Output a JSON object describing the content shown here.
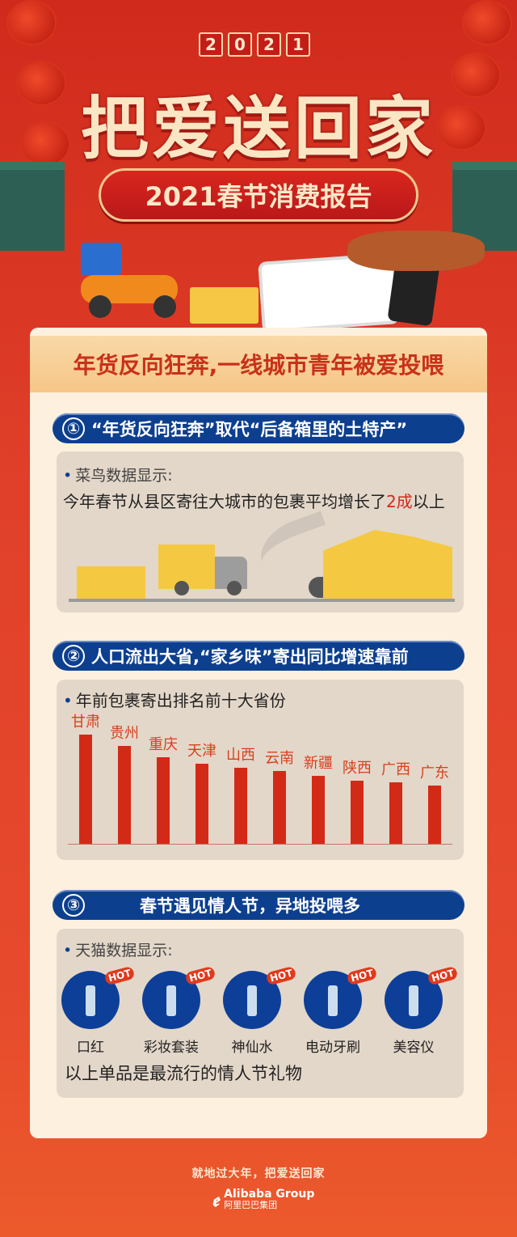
{
  "header": {
    "year_digits": [
      "2",
      "0",
      "2",
      "1"
    ],
    "title": "把爱送回家",
    "subtitle": "2021春节消费报告"
  },
  "card": {
    "title": "年货反向狂奔,一线城市青年被爱投喂"
  },
  "section1": {
    "num": "①",
    "title": "“年货反向狂奔”取代“后备箱里的土特产”",
    "source": "菜鸟数据显示:",
    "text_a": "今年春节从县区寄往大城市的包裹平均增长了",
    "text_highlight": "2成",
    "text_b": "以上"
  },
  "section2": {
    "num": "②",
    "title": "人口流出大省,“家乡味”寄出同比增速靠前",
    "subtitle": "年前包裹寄出排名前十大省份"
  },
  "chart_data": {
    "type": "bar",
    "title": "年前包裹寄出排名前十大省份",
    "categories": [
      "甘肃",
      "贵州",
      "重庆",
      "天津",
      "山西",
      "云南",
      "新疆",
      "陕西",
      "广西",
      "广东"
    ],
    "values": [
      100,
      90,
      79,
      73,
      70,
      67,
      62,
      58,
      56,
      53
    ],
    "grid": false,
    "axis_labels": false,
    "bar_color": "#d32a17"
  },
  "section3": {
    "num": "③",
    "title": "春节遇见情人节，异地投喂多",
    "source": "天猫数据显示:",
    "badge": "HOT",
    "items": [
      {
        "label": "口红",
        "icon": "lipstick-icon"
      },
      {
        "label": "彩妆套装",
        "icon": "makeup-kit-icon"
      },
      {
        "label": "神仙水",
        "icon": "essence-bottle-icon"
      },
      {
        "label": "电动牙刷",
        "icon": "electric-toothbrush-icon"
      },
      {
        "label": "美容仪",
        "icon": "beauty-device-icon"
      }
    ],
    "footnote": "以上单品是最流行的情人节礼物"
  },
  "footer": {
    "slogan": "就地过大年，把爱送回家",
    "logo_en": "Alibaba Group",
    "logo_cn": "阿里巴巴集团"
  },
  "colors": {
    "background": "#e0402a",
    "card": "#fdf0de",
    "pill": "#0d3f8f",
    "bar": "#d32a17"
  }
}
